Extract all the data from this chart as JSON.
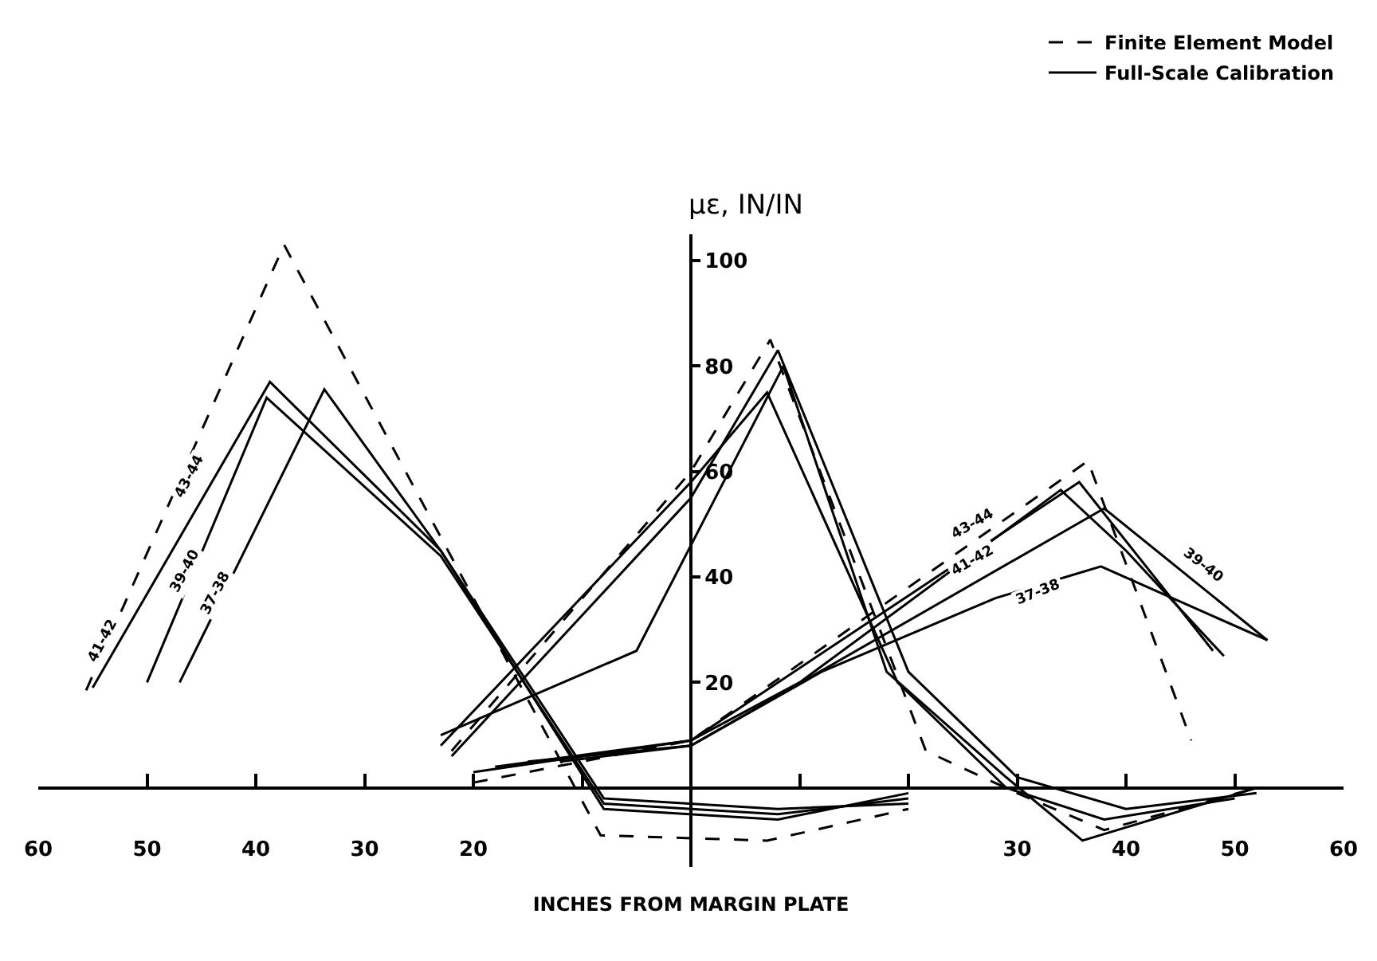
{
  "chart_data": {
    "type": "line",
    "xlabel": "INCHES FROM MARGIN PLATE",
    "ylabel": "με, IN/IN",
    "xlim": [
      -60,
      60
    ],
    "xticks": [
      {
        "value": -60,
        "label": "60"
      },
      {
        "value": -50,
        "label": "50"
      },
      {
        "value": -40,
        "label": "40"
      },
      {
        "value": -30,
        "label": "30"
      },
      {
        "value": -20,
        "label": "20"
      },
      {
        "value": -10,
        "label": null
      },
      {
        "value": 10,
        "label": null
      },
      {
        "value": 20,
        "label": null
      },
      {
        "value": 30,
        "label": "30"
      },
      {
        "value": 40,
        "label": "40"
      },
      {
        "value": 50,
        "label": "50"
      },
      {
        "value": 60,
        "label": "60"
      }
    ],
    "ylim": [
      -15,
      105
    ],
    "yticks": [
      20,
      40,
      60,
      80,
      100
    ],
    "legend": "top right",
    "marker": "none",
    "series": [
      {
        "name": "Finite Element Model",
        "color": "#000000",
        "line_style": "dashed",
        "x": [
          -55.6,
          -37.4,
          -8.3,
          7,
          20
        ],
        "values": [
          18.5,
          103,
          -9,
          -10,
          -4
        ]
      },
      {
        "color": "#000000",
        "line_style": "dashed",
        "x": [
          -22,
          0,
          7.3,
          21.6,
          30,
          38,
          52
        ],
        "values": [
          7,
          60,
          85,
          7,
          -1,
          -8,
          0
        ]
      },
      {
        "color": "#000000",
        "line_style": "dashed",
        "x": [
          -20,
          0,
          36.5,
          46
        ],
        "values": [
          1,
          9,
          62,
          9
        ]
      },
      {
        "name": "Full-Scale Calibration",
        "color": "#000000",
        "line_style": "solid",
        "x": [
          -55,
          -38.7,
          -23,
          -8,
          8,
          20
        ],
        "values": [
          19,
          77,
          45,
          -4,
          -6,
          -1
        ]
      },
      {
        "color": "#000000",
        "line_style": "solid",
        "x": [
          -50,
          -39,
          -23,
          -8,
          8,
          20
        ],
        "values": [
          20,
          74,
          44,
          -3,
          -5,
          -2
        ]
      },
      {
        "color": "#000000",
        "line_style": "solid",
        "x": [
          -47,
          -33.7,
          -23,
          -8,
          8,
          20
        ],
        "values": [
          20,
          75.6,
          45,
          -2,
          -4,
          -3
        ]
      },
      {
        "color": "#000000",
        "line_style": "solid",
        "x": [
          -23,
          -5,
          8.5,
          18,
          29,
          36,
          52
        ],
        "values": [
          10,
          26,
          80,
          22,
          2,
          -10,
          0
        ]
      },
      {
        "color": "#000000",
        "line_style": "solid",
        "x": [
          -23,
          0,
          7,
          19,
          29,
          38,
          50
        ],
        "values": [
          8,
          58,
          75,
          20,
          0,
          -6,
          -2
        ]
      },
      {
        "color": "#000000",
        "line_style": "solid",
        "x": [
          -22,
          0,
          8,
          20,
          30,
          40,
          52
        ],
        "values": [
          6,
          55,
          83,
          22,
          2,
          -4,
          -1
        ]
      },
      {
        "color": "#000000",
        "line_style": "solid",
        "x": [
          -20,
          0,
          10,
          34,
          40,
          49
        ],
        "values": [
          3,
          9,
          20,
          56.5,
          45,
          25
        ]
      },
      {
        "color": "#000000",
        "line_style": "solid",
        "x": [
          -18,
          0,
          35.7,
          48
        ],
        "values": [
          4,
          9,
          58,
          26
        ]
      },
      {
        "color": "#000000",
        "line_style": "solid",
        "x": [
          -15,
          0,
          38,
          53
        ],
        "values": [
          5,
          8,
          53,
          28
        ]
      },
      {
        "color": "#000000",
        "line_style": "solid",
        "x": [
          -12,
          0,
          12,
          28,
          37.7,
          53
        ],
        "values": [
          5,
          8,
          22,
          36,
          42,
          28
        ]
      }
    ],
    "annotations": [
      {
        "text": "43-44",
        "x": -46,
        "y": 59
      },
      {
        "text": "39-40",
        "x": -46.5,
        "y": 41
      },
      {
        "text": "37-38",
        "x": -43.6,
        "y": 37
      },
      {
        "text": "41-42",
        "x": -54,
        "y": 28
      },
      {
        "text": "43-44",
        "x": 26,
        "y": 50
      },
      {
        "text": "41-42",
        "x": 26,
        "y": 43
      },
      {
        "text": "37-38",
        "x": 32,
        "y": 37
      },
      {
        "text": "39-40",
        "x": 47,
        "y": 42
      }
    ]
  }
}
